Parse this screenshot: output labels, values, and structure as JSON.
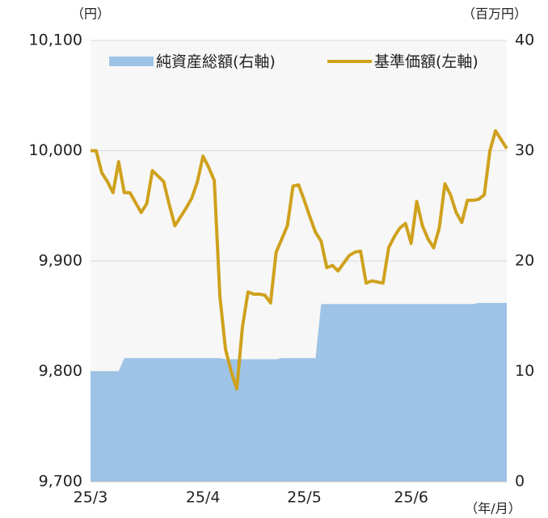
{
  "chart_data": {
    "type": "line",
    "y_unit": "（円）",
    "y2_unit": "（百万円）",
    "x_unit": "（年/月）",
    "categories": [
      "25/3",
      null,
      null,
      null,
      null,
      null,
      null,
      null,
      null,
      null,
      null,
      null,
      null,
      null,
      null,
      null,
      null,
      null,
      null,
      null,
      "25/4",
      null,
      null,
      null,
      null,
      null,
      null,
      null,
      null,
      null,
      null,
      null,
      null,
      null,
      null,
      null,
      null,
      null,
      "25/5",
      null,
      null,
      null,
      null,
      null,
      null,
      null,
      null,
      null,
      null,
      null,
      null,
      null,
      null,
      null,
      null,
      null,
      null,
      "25/6",
      null,
      null,
      null,
      null,
      null,
      null,
      null,
      null,
      null,
      null,
      null,
      null,
      null,
      null,
      null,
      null,
      null
    ],
    "series": [
      {
        "name": "純資産総額(右軸)",
        "color": "#9dc3e6",
        "kind": "area",
        "axis": "y2",
        "values": [
          10,
          10,
          10,
          10,
          10,
          10,
          11.2,
          11.2,
          11.2,
          11.2,
          11.2,
          11.2,
          11.2,
          11.2,
          11.2,
          11.2,
          11.2,
          11.2,
          11.2,
          11.2,
          11.2,
          11.2,
          11.2,
          11.2,
          11.1,
          11.1,
          11.1,
          11.1,
          11.1,
          11.1,
          11.1,
          11.1,
          11.1,
          11.1,
          11.2,
          11.2,
          11.2,
          11.2,
          11.2,
          11.2,
          11.2,
          16.1,
          16.1,
          16.1,
          16.1,
          16.1,
          16.1,
          16.1,
          16.1,
          16.1,
          16.1,
          16.1,
          16.1,
          16.1,
          16.1,
          16.1,
          16.1,
          16.1,
          16.1,
          16.1,
          16.1,
          16.1,
          16.1,
          16.1,
          16.1,
          16.1,
          16.1,
          16.1,
          16.1,
          16.2,
          16.2,
          16.2,
          16.2,
          16.2,
          16.2
        ]
      },
      {
        "name": "基準価額(左軸)",
        "color": "#cfa11d",
        "kind": "line",
        "axis": "y",
        "values": [
          10000,
          10000,
          9980,
          9972,
          9962,
          9990,
          9962,
          9962,
          9953,
          9944,
          9952,
          9982,
          9977,
          9972,
          9951,
          9932,
          9940,
          9948,
          9957,
          9972,
          9995,
          9985,
          9973,
          9868,
          9820,
          9800,
          9784,
          9840,
          9872,
          9870,
          9870,
          9869,
          9862,
          9908,
          9920,
          9932,
          9968,
          9969,
          9955,
          9940,
          9926,
          9918,
          9894,
          9896,
          9891,
          9898,
          9905,
          9908,
          9909,
          9880,
          9882,
          9881,
          9880,
          9912,
          9922,
          9930,
          9934,
          9916,
          9954,
          9932,
          9920,
          9912,
          9930,
          9970,
          9960,
          9944,
          9935,
          9955,
          9955,
          9956,
          9960,
          10000,
          10018,
          10010,
          10002
        ]
      }
    ],
    "ylim": [
      9700,
      10100
    ],
    "yticks": [
      {
        "value": 9700,
        "label": "9,700"
      },
      {
        "value": 9800,
        "label": "9,800"
      },
      {
        "value": 9900,
        "label": "9,900"
      },
      {
        "value": 10000,
        "label": "10,000"
      },
      {
        "value": 10100,
        "label": "10,100"
      }
    ],
    "y2lim": [
      0,
      40
    ],
    "y2ticks": [
      0,
      10,
      20,
      30,
      40
    ],
    "grid": true,
    "legend": "top"
  }
}
